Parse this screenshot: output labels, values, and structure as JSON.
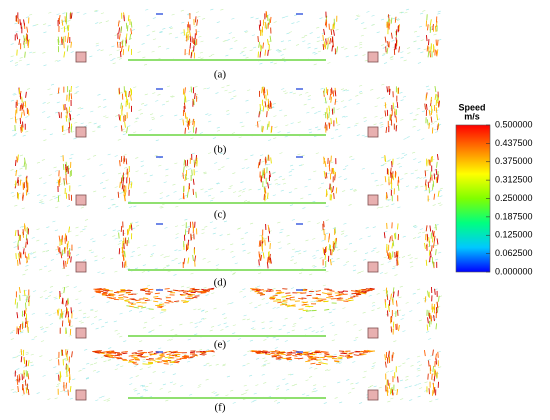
{
  "panels": [
    {
      "label": "(a)"
    },
    {
      "label": "(b)"
    },
    {
      "label": "(c)"
    },
    {
      "label": "(d)"
    },
    {
      "label": "(e)"
    },
    {
      "label": "(f)"
    }
  ],
  "colorbar": {
    "title": "Speed",
    "unit": "m/s",
    "lim": [
      0,
      0.5
    ],
    "colors": [
      "#0000ff",
      "#00c8ff",
      "#00ff80",
      "#80ff00",
      "#ffff00",
      "#ff8000",
      "#ff0000"
    ],
    "ticks": [
      {
        "value": 0.5,
        "label": "0.500000"
      },
      {
        "value": 0.4375,
        "label": "0.437500"
      },
      {
        "value": 0.375,
        "label": "0.375000"
      },
      {
        "value": 0.3125,
        "label": "0.312500"
      },
      {
        "value": 0.25,
        "label": "0.250000"
      },
      {
        "value": 0.1875,
        "label": "0.187500"
      },
      {
        "value": 0.125,
        "label": "0.125000"
      },
      {
        "value": 0.0625,
        "label": "0.062500"
      },
      {
        "value": 0,
        "label": "0.000000"
      }
    ]
  }
}
